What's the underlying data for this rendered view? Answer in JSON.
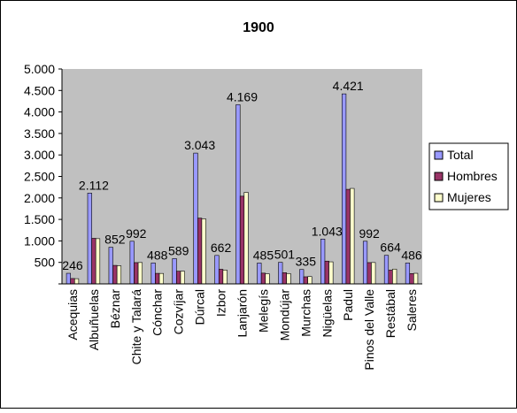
{
  "colors": {
    "plot_area": "#c0c0c0",
    "total": "#9999ff",
    "hombres": "#993366",
    "mujeres": "#ffffcc",
    "border": "#000000",
    "background": "#ffffff"
  },
  "chart_data": {
    "type": "bar",
    "title": "1900",
    "xlabel": "",
    "ylabel": "",
    "ylim": [
      0,
      5000
    ],
    "yticks": [
      0,
      500,
      1000,
      1500,
      2000,
      2500,
      3000,
      3500,
      4000,
      4500,
      5000
    ],
    "ytick_labels": [
      "",
      "500",
      "1.000",
      "1.500",
      "2.000",
      "2.500",
      "3.000",
      "3.500",
      "4.000",
      "4.500",
      "5.000"
    ],
    "grid": false,
    "legend_position": "right",
    "categories": [
      "Acequias",
      "Albuñuelas",
      "Béznar",
      "Chite y Talará",
      "Cónchar",
      "Cozvíjar",
      "Dúrcal",
      "Izbor",
      "Lanjarón",
      "Melegís",
      "Mondújar",
      "Murchas",
      "Nigüelas",
      "Padul",
      "Pinos del Valle",
      "Restábal",
      "Saleres"
    ],
    "series": [
      {
        "name": "Total",
        "color_key": "total",
        "values": [
          246,
          2112,
          852,
          992,
          488,
          589,
          3043,
          662,
          4169,
          485,
          501,
          335,
          1043,
          4421,
          992,
          664,
          486
        ]
      },
      {
        "name": "Hombres",
        "color_key": "hombres",
        "values": [
          125,
          1060,
          430,
          495,
          245,
          295,
          1530,
          340,
          2040,
          250,
          260,
          165,
          530,
          2200,
          495,
          320,
          240
        ]
      },
      {
        "name": "Mujeres",
        "color_key": "mujeres",
        "values": [
          121,
          1052,
          422,
          497,
          243,
          294,
          1513,
          322,
          2129,
          235,
          241,
          170,
          513,
          2221,
          497,
          344,
          246
        ]
      }
    ],
    "data_labels": [
      "246",
      "2.112",
      "852",
      "992",
      "488",
      "589",
      "3.043",
      "662",
      "4.169",
      "485",
      "501",
      "335",
      "1.043",
      "4.421",
      "992",
      "664",
      "486"
    ]
  }
}
